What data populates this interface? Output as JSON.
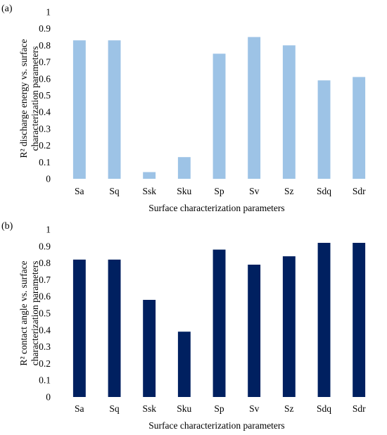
{
  "chart_data": [
    {
      "type": "bar",
      "panel_label": "(a)",
      "categories": [
        "Sa",
        "Sq",
        "Ssk",
        "Sku",
        "Sp",
        "Sv",
        "Sz",
        "Sdq",
        "Sdr"
      ],
      "values": [
        0.83,
        0.83,
        0.04,
        0.13,
        0.75,
        0.85,
        0.8,
        0.59,
        0.61
      ],
      "ylabel_line1": "R² discharge energy vs. surface",
      "ylabel_line2": "characterization parameters",
      "xlabel": "Surface characterization parameters",
      "ylim": [
        0,
        1
      ],
      "yticks": [
        "0",
        "0.1",
        "0.2",
        "0.3",
        "0.4",
        "0.5",
        "0.6",
        "0.7",
        "0.8",
        "0.9",
        "1"
      ],
      "color": "#9DC3E6",
      "grid": false,
      "legend": "none"
    },
    {
      "type": "bar",
      "panel_label": "(b)",
      "categories": [
        "Sa",
        "Sq",
        "Ssk",
        "Sku",
        "Sp",
        "Sv",
        "Sz",
        "Sdq",
        "Sdr"
      ],
      "values": [
        0.82,
        0.82,
        0.58,
        0.39,
        0.88,
        0.79,
        0.84,
        0.92,
        0.92
      ],
      "ylabel_line1": "R² contact angle vs. surface",
      "ylabel_line2": "characterization parameters",
      "xlabel": "Surface characterization parameters",
      "ylim": [
        0,
        1
      ],
      "yticks": [
        "0",
        "0.1",
        "0.2",
        "0.3",
        "0.4",
        "0.5",
        "0.6",
        "0.7",
        "0.8",
        "0.9",
        "1"
      ],
      "color": "#002060",
      "grid": false,
      "legend": "none"
    }
  ]
}
